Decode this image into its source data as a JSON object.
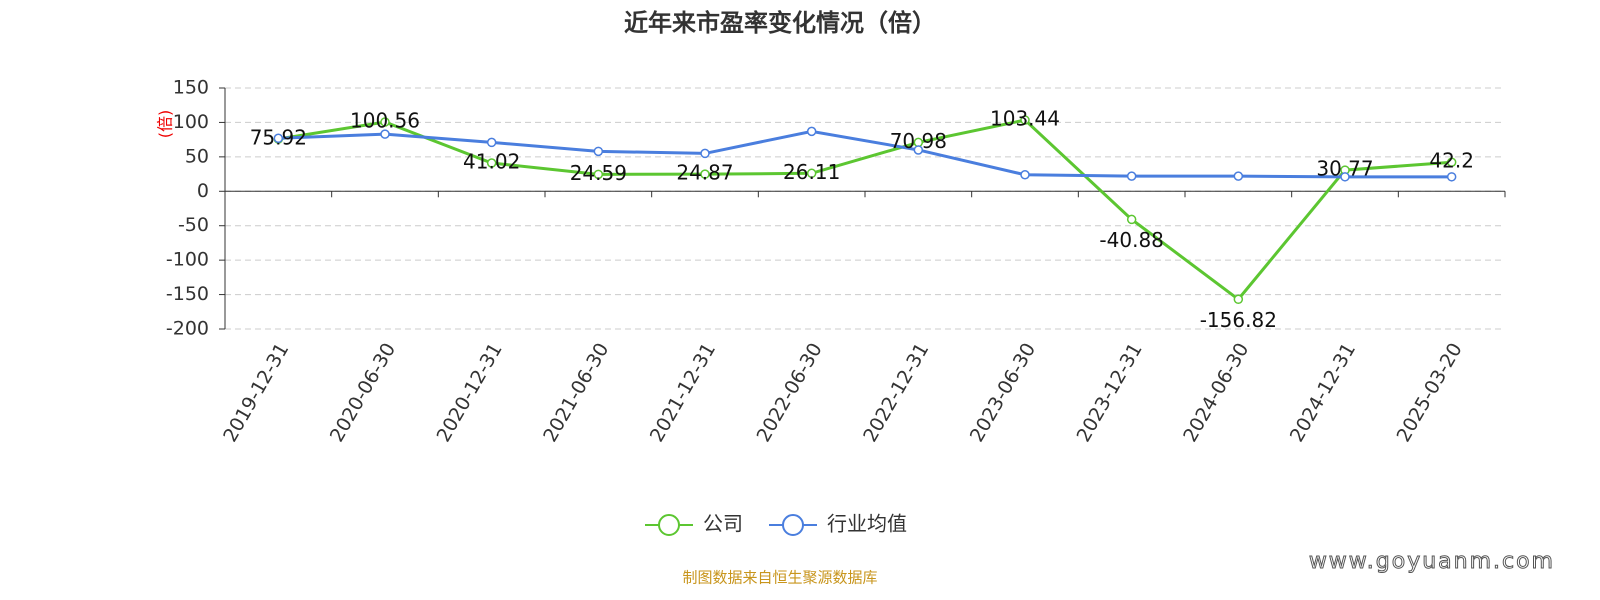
{
  "chart_data": {
    "type": "line",
    "title": "近年来市盈率变化情况（倍）",
    "y_label": "(倍)",
    "categories": [
      "2019-12-31",
      "2020-06-30",
      "2020-12-31",
      "2021-06-30",
      "2021-12-31",
      "2022-06-30",
      "2022-12-31",
      "2023-06-30",
      "2023-12-31",
      "2024-06-30",
      "2024-12-31",
      "2025-03-20"
    ],
    "series": [
      {
        "name": "公司",
        "color": "#5cc631",
        "values": [
          75.92,
          100.56,
          41.02,
          24.59,
          24.87,
          26.11,
          70.98,
          103.44,
          -40.88,
          -156.82,
          30.77,
          42.2
        ],
        "show_labels": true
      },
      {
        "name": "行业均值",
        "color": "#4a7ede",
        "values": [
          77,
          83,
          71,
          58,
          55,
          87,
          60,
          24,
          22,
          22,
          21,
          21
        ],
        "show_labels": false
      }
    ],
    "ylim": [
      -200,
      150
    ],
    "yticks": [
      -200,
      -150,
      -100,
      -50,
      0,
      50,
      100,
      150
    ],
    "grid": true,
    "source": "制图数据来自恒生聚源数据库",
    "watermark": "www.goyuanm.com"
  }
}
